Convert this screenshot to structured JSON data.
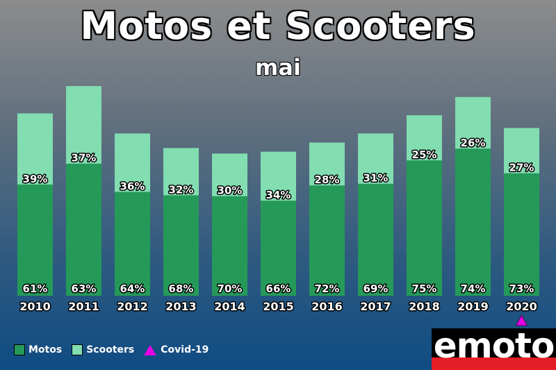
{
  "title": "Motos et Scooters",
  "subtitle": "mai",
  "colors": {
    "motos": "#259a58",
    "scooters": "#82ddb0",
    "covid": "#e600e6"
  },
  "legend": {
    "motos": "Motos",
    "scooters": "Scooters",
    "covid": "Covid-19"
  },
  "logo": {
    "text": "emoto"
  },
  "chart_data": {
    "type": "bar",
    "stacked": true,
    "title": "Motos et Scooters",
    "subtitle": "mai",
    "categories": [
      "2010",
      "2011",
      "2012",
      "2013",
      "2014",
      "2015",
      "2016",
      "2017",
      "2018",
      "2019",
      "2020"
    ],
    "series": [
      {
        "name": "Motos",
        "values": [
          61,
          63,
          64,
          68,
          70,
          66,
          72,
          69,
          75,
          74,
          73
        ]
      },
      {
        "name": "Scooters",
        "values": [
          39,
          37,
          36,
          32,
          30,
          34,
          28,
          31,
          25,
          26,
          27
        ]
      }
    ],
    "relative_totals": [
      100,
      115,
      89,
      81,
      78,
      79,
      84,
      89,
      99,
      109,
      92
    ],
    "markers": [
      {
        "category": "2020",
        "label": "Covid-19",
        "shape": "triangle"
      }
    ],
    "legend_position": "bottom-left",
    "grid": false
  }
}
